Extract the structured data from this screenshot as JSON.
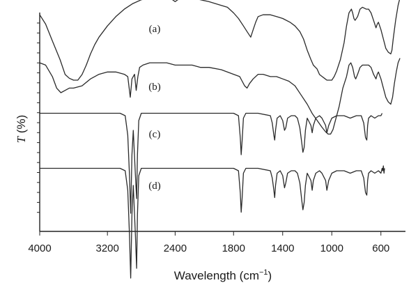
{
  "chart_data": {
    "type": "line",
    "xlabel_prefix": "Wavelength (cm",
    "xlabel_sup": "−1",
    "xlabel_suffix": ")",
    "ylabel_italic": "T",
    "ylabel_rest": " (%)",
    "xlim": [
      4000,
      400
    ],
    "x_reversed": true,
    "x_ticks": [
      4000,
      3200,
      2400,
      1800,
      1400,
      1000,
      600
    ],
    "y_ticks_minor": true,
    "grid": false,
    "series": [
      {
        "name": "(a)",
        "points": [
          [
            4000,
            88
          ],
          [
            3930,
            83
          ],
          [
            3850,
            74
          ],
          [
            3760,
            64
          ],
          [
            3700,
            56
          ],
          [
            3650,
            54
          ],
          [
            3600,
            53
          ],
          [
            3550,
            53
          ],
          [
            3500,
            56
          ],
          [
            3450,
            61
          ],
          [
            3400,
            67
          ],
          [
            3350,
            72
          ],
          [
            3300,
            76
          ],
          [
            3200,
            82
          ],
          [
            3100,
            87
          ],
          [
            3000,
            91
          ],
          [
            2900,
            94
          ],
          [
            2800,
            96
          ],
          [
            2700,
            97
          ],
          [
            2600,
            97
          ],
          [
            2500,
            97
          ],
          [
            2430,
            96
          ],
          [
            2400,
            95
          ],
          [
            2370,
            96
          ],
          [
            2300,
            97
          ],
          [
            2200,
            97
          ],
          [
            2100,
            96
          ],
          [
            2000,
            95
          ],
          [
            1900,
            93
          ],
          [
            1850,
            92
          ],
          [
            1800,
            89
          ],
          [
            1760,
            86
          ],
          [
            1720,
            82
          ],
          [
            1690,
            79
          ],
          [
            1660,
            76
          ],
          [
            1640,
            80
          ],
          [
            1620,
            84
          ],
          [
            1600,
            87
          ],
          [
            1560,
            88
          ],
          [
            1500,
            88
          ],
          [
            1450,
            87
          ],
          [
            1400,
            86
          ],
          [
            1340,
            84
          ],
          [
            1300,
            82
          ],
          [
            1260,
            79
          ],
          [
            1230,
            75
          ],
          [
            1200,
            69
          ],
          [
            1170,
            64
          ],
          [
            1150,
            61
          ],
          [
            1120,
            59
          ],
          [
            1100,
            56
          ],
          [
            1080,
            55
          ],
          [
            1060,
            54
          ],
          [
            1040,
            53
          ],
          [
            1020,
            53
          ],
          [
            1000,
            53
          ],
          [
            980,
            55
          ],
          [
            960,
            58
          ],
          [
            930,
            64
          ],
          [
            900,
            73
          ],
          [
            880,
            82
          ],
          [
            860,
            89
          ],
          [
            840,
            91
          ],
          [
            830,
            89
          ],
          [
            820,
            86
          ],
          [
            810,
            85
          ],
          [
            790,
            87
          ],
          [
            770,
            91
          ],
          [
            750,
            92
          ],
          [
            720,
            91
          ],
          [
            700,
            91
          ],
          [
            680,
            89
          ],
          [
            660,
            85
          ],
          [
            640,
            81
          ],
          [
            630,
            83
          ],
          [
            620,
            84
          ],
          [
            600,
            80
          ],
          [
            580,
            75
          ],
          [
            560,
            70
          ],
          [
            540,
            68
          ],
          [
            520,
            67
          ],
          [
            510,
            69
          ],
          [
            500,
            75
          ],
          [
            480,
            85
          ],
          [
            460,
            93
          ],
          [
            445,
            97
          ]
        ]
      },
      {
        "name": "(b)",
        "points": [
          [
            4000,
            93
          ],
          [
            3930,
            92
          ],
          [
            3850,
            87
          ],
          [
            3800,
            82
          ],
          [
            3750,
            80
          ],
          [
            3700,
            81
          ],
          [
            3650,
            82
          ],
          [
            3600,
            82
          ],
          [
            3500,
            83
          ],
          [
            3400,
            86
          ],
          [
            3300,
            88
          ],
          [
            3200,
            89
          ],
          [
            3100,
            89
          ],
          [
            3000,
            88
          ],
          [
            2960,
            87
          ],
          [
            2930,
            78
          ],
          [
            2910,
            86
          ],
          [
            2880,
            88
          ],
          [
            2860,
            81
          ],
          [
            2840,
            87
          ],
          [
            2820,
            91
          ],
          [
            2780,
            92
          ],
          [
            2700,
            93
          ],
          [
            2600,
            93
          ],
          [
            2500,
            93
          ],
          [
            2400,
            92
          ],
          [
            2300,
            92
          ],
          [
            2200,
            92
          ],
          [
            2100,
            91
          ],
          [
            2000,
            91
          ],
          [
            1900,
            90
          ],
          [
            1800,
            88
          ],
          [
            1750,
            87
          ],
          [
            1730,
            85
          ],
          [
            1710,
            83
          ],
          [
            1690,
            82
          ],
          [
            1670,
            84
          ],
          [
            1640,
            86
          ],
          [
            1600,
            88
          ],
          [
            1560,
            88
          ],
          [
            1500,
            87
          ],
          [
            1450,
            87
          ],
          [
            1400,
            86
          ],
          [
            1350,
            85
          ],
          [
            1300,
            83
          ],
          [
            1250,
            79
          ],
          [
            1200,
            75
          ],
          [
            1160,
            71
          ],
          [
            1120,
            68
          ],
          [
            1080,
            65
          ],
          [
            1050,
            63
          ],
          [
            1030,
            62
          ],
          [
            1010,
            62
          ],
          [
            990,
            64
          ],
          [
            970,
            68
          ],
          [
            940,
            74
          ],
          [
            910,
            82
          ],
          [
            880,
            87
          ],
          [
            860,
            92
          ],
          [
            845,
            93
          ],
          [
            830,
            91
          ],
          [
            815,
            87
          ],
          [
            805,
            86
          ],
          [
            790,
            88
          ],
          [
            770,
            91
          ],
          [
            750,
            92
          ],
          [
            720,
            92
          ],
          [
            700,
            92
          ],
          [
            680,
            91
          ],
          [
            660,
            88
          ],
          [
            640,
            86
          ],
          [
            630,
            88
          ],
          [
            620,
            89
          ],
          [
            600,
            86
          ],
          [
            580,
            82
          ],
          [
            560,
            78
          ],
          [
            540,
            76
          ],
          [
            520,
            75
          ],
          [
            505,
            78
          ],
          [
            490,
            84
          ],
          [
            475,
            89
          ],
          [
            460,
            93
          ],
          [
            445,
            95
          ]
        ]
      },
      {
        "name": "(c)",
        "points": [
          [
            4000,
            97
          ],
          [
            3600,
            97
          ],
          [
            3200,
            97
          ],
          [
            3050,
            97
          ],
          [
            2990,
            96
          ],
          [
            2960,
            88
          ],
          [
            2940,
            72
          ],
          [
            2925,
            56
          ],
          [
            2910,
            80
          ],
          [
            2895,
            90
          ],
          [
            2870,
            72
          ],
          [
            2855,
            62
          ],
          [
            2845,
            80
          ],
          [
            2830,
            94
          ],
          [
            2800,
            97
          ],
          [
            2600,
            97
          ],
          [
            2400,
            97
          ],
          [
            2200,
            97
          ],
          [
            2000,
            97
          ],
          [
            1800,
            97
          ],
          [
            1760,
            96
          ],
          [
            1745,
            87
          ],
          [
            1738,
            80
          ],
          [
            1730,
            86
          ],
          [
            1720,
            95
          ],
          [
            1700,
            97
          ],
          [
            1600,
            97
          ],
          [
            1500,
            96
          ],
          [
            1485,
            93
          ],
          [
            1472,
            88
          ],
          [
            1465,
            86
          ],
          [
            1458,
            90
          ],
          [
            1445,
            95
          ],
          [
            1420,
            96
          ],
          [
            1400,
            94
          ],
          [
            1385,
            90
          ],
          [
            1375,
            91
          ],
          [
            1360,
            95
          ],
          [
            1330,
            96
          ],
          [
            1300,
            96
          ],
          [
            1280,
            95
          ],
          [
            1260,
            91
          ],
          [
            1245,
            85
          ],
          [
            1235,
            81
          ],
          [
            1225,
            83
          ],
          [
            1215,
            90
          ],
          [
            1200,
            95
          ],
          [
            1170,
            92
          ],
          [
            1160,
            89
          ],
          [
            1150,
            92
          ],
          [
            1130,
            95
          ],
          [
            1100,
            96
          ],
          [
            1080,
            95
          ],
          [
            1050,
            92
          ],
          [
            1040,
            89
          ],
          [
            1025,
            92
          ],
          [
            1000,
            95
          ],
          [
            960,
            96
          ],
          [
            900,
            96
          ],
          [
            850,
            95
          ],
          [
            800,
            96
          ],
          [
            760,
            96
          ],
          [
            740,
            93
          ],
          [
            725,
            87
          ],
          [
            715,
            86
          ],
          [
            708,
            92
          ],
          [
            700,
            95
          ],
          [
            680,
            96
          ],
          [
            650,
            95
          ],
          [
            620,
            96
          ],
          [
            600,
            96
          ],
          [
            590,
            97
          ]
        ]
      },
      {
        "name": "(d)",
        "points": [
          [
            4000,
            97
          ],
          [
            3600,
            97
          ],
          [
            3200,
            97
          ],
          [
            3050,
            97
          ],
          [
            2990,
            96
          ],
          [
            2960,
            88
          ],
          [
            2940,
            70
          ],
          [
            2925,
            52
          ],
          [
            2910,
            78
          ],
          [
            2895,
            90
          ],
          [
            2870,
            70
          ],
          [
            2855,
            56
          ],
          [
            2845,
            78
          ],
          [
            2830,
            94
          ],
          [
            2800,
            97
          ],
          [
            2600,
            97
          ],
          [
            2400,
            97
          ],
          [
            2200,
            97
          ],
          [
            2000,
            97
          ],
          [
            1800,
            97
          ],
          [
            1760,
            96
          ],
          [
            1745,
            87
          ],
          [
            1738,
            79
          ],
          [
            1730,
            85
          ],
          [
            1720,
            95
          ],
          [
            1700,
            97
          ],
          [
            1600,
            97
          ],
          [
            1500,
            96
          ],
          [
            1485,
            93
          ],
          [
            1472,
            88
          ],
          [
            1465,
            85
          ],
          [
            1458,
            90
          ],
          [
            1445,
            95
          ],
          [
            1420,
            96
          ],
          [
            1400,
            94
          ],
          [
            1385,
            89
          ],
          [
            1375,
            91
          ],
          [
            1360,
            95
          ],
          [
            1330,
            96
          ],
          [
            1300,
            96
          ],
          [
            1280,
            95
          ],
          [
            1260,
            91
          ],
          [
            1245,
            84
          ],
          [
            1235,
            80
          ],
          [
            1225,
            83
          ],
          [
            1215,
            90
          ],
          [
            1200,
            95
          ],
          [
            1170,
            92
          ],
          [
            1160,
            88
          ],
          [
            1150,
            92
          ],
          [
            1130,
            95
          ],
          [
            1100,
            96
          ],
          [
            1080,
            95
          ],
          [
            1050,
            92
          ],
          [
            1040,
            88
          ],
          [
            1025,
            92
          ],
          [
            1000,
            95
          ],
          [
            960,
            96
          ],
          [
            900,
            96
          ],
          [
            850,
            95
          ],
          [
            800,
            96
          ],
          [
            760,
            96
          ],
          [
            740,
            93
          ],
          [
            725,
            87
          ],
          [
            715,
            86
          ],
          [
            708,
            92
          ],
          [
            700,
            95
          ],
          [
            680,
            96
          ],
          [
            650,
            95
          ],
          [
            620,
            96
          ],
          [
            600,
            95
          ],
          [
            590,
            97
          ],
          [
            585,
            96
          ],
          [
            580,
            98
          ],
          [
            575,
            95
          ],
          [
            570,
            97
          ]
        ]
      }
    ]
  }
}
